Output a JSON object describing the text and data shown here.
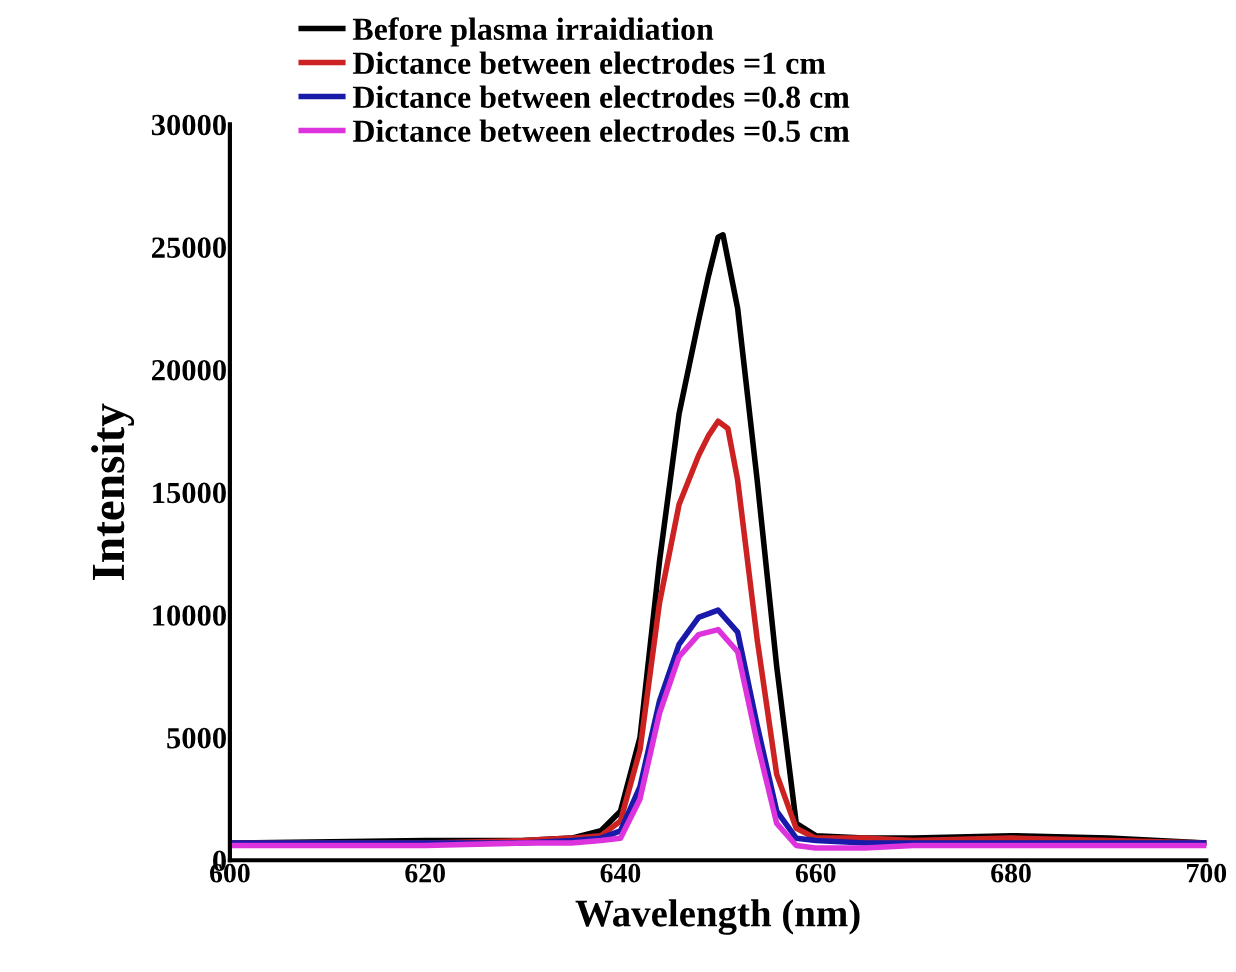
{
  "chart_data": {
    "type": "line",
    "xlabel": "Wavelength (nm)",
    "ylabel": "Intensity",
    "xlim": [
      600,
      700
    ],
    "ylim": [
      0,
      30000
    ],
    "xticks": [
      600,
      620,
      640,
      660,
      680,
      700
    ],
    "yticks": [
      0,
      5000,
      10000,
      15000,
      20000,
      25000,
      30000
    ],
    "grid": false,
    "legend": "top",
    "marker": "none",
    "line_style": "solid",
    "series": [
      {
        "name": "Before plasma irraidiation",
        "color": "#000000",
        "x": [
          600,
          620,
          630,
          635,
          638,
          640,
          642,
          644,
          646,
          648,
          649,
          650,
          650.5,
          652,
          654,
          656,
          658,
          660,
          665,
          670,
          680,
          690,
          700
        ],
        "values": [
          700,
          800,
          800,
          900,
          1200,
          2000,
          5000,
          12200,
          18200,
          22000,
          23800,
          25400,
          25500,
          22500,
          15500,
          7900,
          1500,
          1000,
          900,
          900,
          1000,
          900,
          700
        ]
      },
      {
        "name": "Dictance between electrodes =1 cm",
        "color": "#cc2222",
        "x": [
          600,
          620,
          630,
          635,
          638,
          640,
          642,
          644,
          646,
          648,
          649,
          650,
          651,
          652,
          654,
          656,
          658,
          660,
          665,
          670,
          680,
          690,
          700
        ],
        "values": [
          700,
          700,
          800,
          900,
          1000,
          1600,
          4500,
          10500,
          14500,
          16500,
          17300,
          17900,
          17600,
          15500,
          9000,
          3500,
          1300,
          900,
          900,
          800,
          900,
          800,
          700
        ]
      },
      {
        "name": "Dictance between electrodes =0.8 cm",
        "color": "#1a1aaa",
        "x": [
          600,
          620,
          630,
          635,
          638,
          640,
          642,
          644,
          646,
          648,
          650,
          652,
          654,
          656,
          658,
          660,
          665,
          670,
          680,
          690,
          700
        ],
        "values": [
          700,
          700,
          700,
          800,
          900,
          1200,
          3000,
          6500,
          8800,
          9900,
          10200,
          9300,
          5500,
          2000,
          900,
          800,
          700,
          700,
          700,
          700,
          700
        ]
      },
      {
        "name": "Dictance between electrodes =0.5 cm",
        "color": "#dd33dd",
        "x": [
          600,
          620,
          630,
          635,
          638,
          640,
          642,
          644,
          646,
          648,
          650,
          652,
          654,
          656,
          658,
          660,
          665,
          670,
          680,
          690,
          700
        ],
        "values": [
          600,
          600,
          700,
          700,
          800,
          900,
          2500,
          6000,
          8300,
          9200,
          9400,
          8500,
          4800,
          1500,
          600,
          500,
          500,
          600,
          600,
          600,
          600
        ]
      }
    ]
  }
}
